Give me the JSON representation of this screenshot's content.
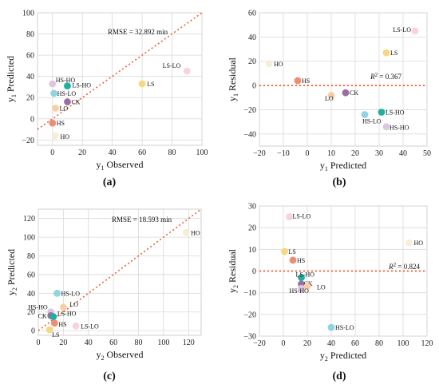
{
  "figure": {
    "palette": {
      "HS-HO": "#dcc6e0",
      "LS-HO": "#1eb0a0",
      "HS-LO": "#8fd4e0",
      "CK": "#9a6fa0",
      "LO": "#f7cfa6",
      "HS": "#f08b74",
      "HO": "#f6eed7",
      "LS": "#f7d77f",
      "LS-LO": "#f8d2dc",
      "fit_line": "#e8623a",
      "zero_line": "#e8623a",
      "grid": "#d9d9d9"
    }
  },
  "chart_data": [
    {
      "id": "a",
      "type": "scatter",
      "panel_label": "(a)",
      "xlabel": "y1 Observed",
      "ylabel": "y1 Predicted",
      "xlabel_main": "y",
      "xlabel_sub": "1",
      "xlabel_rest": " Observed",
      "ylabel_main": "y",
      "ylabel_sub": "1",
      "ylabel_rest": " Predicted",
      "xlim": [
        -10,
        100
      ],
      "ylim": [
        -25,
        100
      ],
      "xticks": [
        0,
        20,
        40,
        60,
        80,
        100
      ],
      "yticks": [
        -20,
        0,
        20,
        40,
        60,
        80,
        100
      ],
      "grid": true,
      "reference": "y = x",
      "annotation": "RMSE = 32.892 min",
      "points": [
        {
          "label": "HS-HO",
          "x": 0,
          "y": 33
        },
        {
          "label": "LS-HO",
          "x": 10,
          "y": 31
        },
        {
          "label": "HS-LO",
          "x": 1,
          "y": 24
        },
        {
          "label": "CK",
          "x": 10,
          "y": 16
        },
        {
          "label": "LO",
          "x": 2,
          "y": 10
        },
        {
          "label": "HS",
          "x": 0,
          "y": -4
        },
        {
          "label": "HO",
          "x": 2,
          "y": -16
        },
        {
          "label": "LS",
          "x": 60,
          "y": 33
        },
        {
          "label": "LS-LO",
          "x": 90,
          "y": 45
        }
      ]
    },
    {
      "id": "b",
      "type": "scatter",
      "panel_label": "(b)",
      "xlabel": "y1 Predicted",
      "ylabel": "y1 Residual",
      "xlabel_main": "y",
      "xlabel_sub": "1",
      "xlabel_rest": " Predicted",
      "ylabel_main": "y",
      "ylabel_sub": "1",
      "ylabel_rest": " Residual",
      "xlim": [
        -20,
        50
      ],
      "ylim": [
        -50,
        60
      ],
      "xticks": [
        -20,
        -10,
        0,
        10,
        20,
        30,
        40,
        50
      ],
      "yticks": [
        -40,
        -20,
        0,
        20,
        40,
        60
      ],
      "grid": true,
      "reference": "y = 0",
      "annotation": "R² = 0.367",
      "points": [
        {
          "label": "LS-LO",
          "x": 45,
          "y": 45
        },
        {
          "label": "LS",
          "x": 33,
          "y": 27
        },
        {
          "label": "HO",
          "x": -16,
          "y": 18
        },
        {
          "label": "HS",
          "x": -4,
          "y": 4
        },
        {
          "label": "LO",
          "x": 10,
          "y": -8
        },
        {
          "label": "CK",
          "x": 16,
          "y": -6
        },
        {
          "label": "LS-HO",
          "x": 31,
          "y": -22
        },
        {
          "label": "HS-LO",
          "x": 24,
          "y": -24
        },
        {
          "label": "HS-HO",
          "x": 33,
          "y": -34
        }
      ]
    },
    {
      "id": "c",
      "type": "scatter",
      "panel_label": "(c)",
      "xlabel": "y2 Observed",
      "ylabel": "y2 Predicted",
      "xlabel_main": "y",
      "xlabel_sub": "2",
      "xlabel_rest": " Observed",
      "ylabel_main": "y",
      "ylabel_sub": "2",
      "ylabel_rest": " Predicted",
      "xlim": [
        0,
        130
      ],
      "ylim": [
        -5,
        130
      ],
      "xticks": [
        0,
        20,
        40,
        60,
        80,
        100,
        120
      ],
      "yticks": [
        0,
        20,
        40,
        60,
        80,
        100,
        120
      ],
      "grid": true,
      "reference": "y = x",
      "annotation": "RMSE = 18.593 min",
      "points": [
        {
          "label": "HO",
          "x": 118,
          "y": 105
        },
        {
          "label": "HS-LO",
          "x": 15,
          "y": 40
        },
        {
          "label": "LO",
          "x": 20,
          "y": 25
        },
        {
          "label": "HS-HO",
          "x": 10,
          "y": 20
        },
        {
          "label": "CK",
          "x": 10,
          "y": 16
        },
        {
          "label": "LS-HO",
          "x": 12,
          "y": 15
        },
        {
          "label": "HS",
          "x": 13,
          "y": 8
        },
        {
          "label": "LS-LO",
          "x": 30,
          "y": 5
        },
        {
          "label": "LS",
          "x": 9,
          "y": 1
        }
      ]
    },
    {
      "id": "d",
      "type": "scatter",
      "panel_label": "(d)",
      "xlabel": "y2 Predicted",
      "ylabel": "y2 Residual",
      "xlabel_main": "y",
      "xlabel_sub": "2",
      "xlabel_rest": " Predicted",
      "ylabel_main": "y",
      "ylabel_sub": "2",
      "ylabel_rest": " Residual",
      "xlim": [
        -20,
        120
      ],
      "ylim": [
        -30,
        30
      ],
      "xticks": [
        -20,
        0,
        20,
        40,
        60,
        80,
        100,
        120
      ],
      "yticks": [
        -30,
        -20,
        -10,
        0,
        10,
        20,
        30
      ],
      "grid": true,
      "reference": "y = 0",
      "annotation": "R² = 0.824",
      "points": [
        {
          "label": "LS-LO",
          "x": 5,
          "y": 25
        },
        {
          "label": "HO",
          "x": 105,
          "y": 13
        },
        {
          "label": "LS",
          "x": 1,
          "y": 9
        },
        {
          "label": "HS",
          "x": 8,
          "y": 5
        },
        {
          "label": "LS-HO",
          "x": 15,
          "y": -3
        },
        {
          "label": "CK",
          "x": 15,
          "y": -6
        },
        {
          "label": "LO",
          "x": 20,
          "y": -7
        },
        {
          "label": "HS-HO",
          "x": 15,
          "y": -8
        },
        {
          "label": "HS-LO",
          "x": 40,
          "y": -26
        }
      ]
    }
  ]
}
